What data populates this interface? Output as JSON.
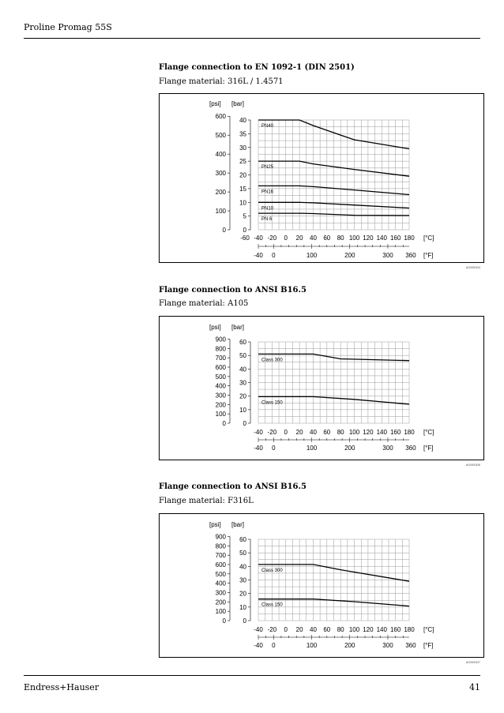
{
  "header": {
    "title": "Proline Promag 55S"
  },
  "footer": {
    "brand": "Endress+Hauser",
    "page": "41"
  },
  "sections": [
    {
      "title": "Flange connection to EN 1092-1 (DIN 2501)",
      "subtitle": "Flange material: 316L / 1.4571",
      "figure_id": "A0005304"
    },
    {
      "title": "Flange connection to ANSI B16.5",
      "subtitle": "Flange material: A105",
      "figure_id": "A0005306"
    },
    {
      "title": "Flange connection to ANSI B16.5",
      "subtitle": "Flange material: F316L",
      "figure_id": "A0005307"
    }
  ],
  "chart_data": [
    {
      "type": "line",
      "units": {
        "psi": "[psi]",
        "bar": "[bar]",
        "c": "[°C]",
        "f": "[°F]"
      },
      "xlim": [
        -60,
        180
      ],
      "ylim": [
        0,
        40
      ],
      "grid": true,
      "x_ticks_c": [
        "-60",
        "-40",
        "-20",
        "0",
        "20",
        "40",
        "60",
        "80",
        "100",
        "120",
        "140",
        "160",
        "180"
      ],
      "x_ticks_f": [
        "-40",
        "0",
        "100",
        "200",
        "300",
        "360"
      ],
      "y_ticks_bar": [
        "0",
        "5",
        "10",
        "15",
        "20",
        "25",
        "30",
        "35",
        "40"
      ],
      "y_ticks_psi": [
        "0",
        "100",
        "200",
        "300",
        "400",
        "500",
        "600"
      ],
      "series": [
        {
          "name": "PN40",
          "x": [
            -40,
            20,
            40,
            80,
            100,
            180
          ],
          "y": [
            40,
            40,
            38,
            34.5,
            32.8,
            29.5
          ]
        },
        {
          "name": "PN25",
          "x": [
            -40,
            20,
            40,
            100,
            180
          ],
          "y": [
            25,
            25,
            24,
            22,
            19.5
          ]
        },
        {
          "name": "PN16",
          "x": [
            -40,
            20,
            40,
            100,
            180
          ],
          "y": [
            16,
            16,
            15.7,
            14.5,
            12.8
          ]
        },
        {
          "name": "PN10",
          "x": [
            -40,
            20,
            40,
            100,
            180
          ],
          "y": [
            10,
            10,
            9.8,
            9,
            7.9
          ]
        },
        {
          "name": "PN 6",
          "x": [
            -40,
            20,
            40,
            100,
            180
          ],
          "y": [
            6,
            6,
            5.9,
            5.3,
            5.2
          ]
        }
      ]
    },
    {
      "type": "line",
      "units": {
        "psi": "[psi]",
        "bar": "[bar]",
        "c": "[°C]",
        "f": "[°F]"
      },
      "xlim": [
        -40,
        180
      ],
      "ylim": [
        0,
        60
      ],
      "grid": true,
      "x_ticks_c": [
        "-40",
        "-20",
        "0",
        "20",
        "40",
        "60",
        "80",
        "100",
        "120",
        "140",
        "160",
        "180"
      ],
      "x_ticks_f": [
        "-40",
        "0",
        "100",
        "200",
        "300",
        "360"
      ],
      "y_ticks_bar": [
        "0",
        "10",
        "20",
        "30",
        "40",
        "50",
        "60"
      ],
      "y_ticks_psi": [
        "0",
        "100",
        "200",
        "300",
        "400",
        "500",
        "600",
        "700",
        "800",
        "900"
      ],
      "series": [
        {
          "name": "Class 300",
          "x": [
            -40,
            40,
            80,
            180
          ],
          "y": [
            51,
            51,
            47.5,
            46.2
          ]
        },
        {
          "name": "Class 150",
          "x": [
            -40,
            40,
            100,
            180
          ],
          "y": [
            19.6,
            19.6,
            17.6,
            14
          ]
        }
      ]
    },
    {
      "type": "line",
      "units": {
        "psi": "[psi]",
        "bar": "[bar]",
        "c": "[°C]",
        "f": "[°F]"
      },
      "xlim": [
        -40,
        180
      ],
      "ylim": [
        0,
        60
      ],
      "grid": true,
      "x_ticks_c": [
        "-40",
        "-20",
        "0",
        "20",
        "40",
        "60",
        "80",
        "100",
        "120",
        "140",
        "160",
        "180"
      ],
      "x_ticks_f": [
        "-40",
        "0",
        "100",
        "200",
        "300",
        "360"
      ],
      "y_ticks_bar": [
        "0",
        "10",
        "20",
        "30",
        "40",
        "50",
        "60"
      ],
      "y_ticks_psi": [
        "0",
        "100",
        "200",
        "300",
        "400",
        "500",
        "600",
        "700",
        "800",
        "900"
      ],
      "series": [
        {
          "name": "Class 300",
          "x": [
            -40,
            40,
            80,
            180
          ],
          "y": [
            41.4,
            41.4,
            37.5,
            29
          ]
        },
        {
          "name": "Class 150",
          "x": [
            -40,
            40,
            100,
            180
          ],
          "y": [
            15.9,
            15.9,
            14,
            10.7
          ]
        }
      ]
    }
  ]
}
